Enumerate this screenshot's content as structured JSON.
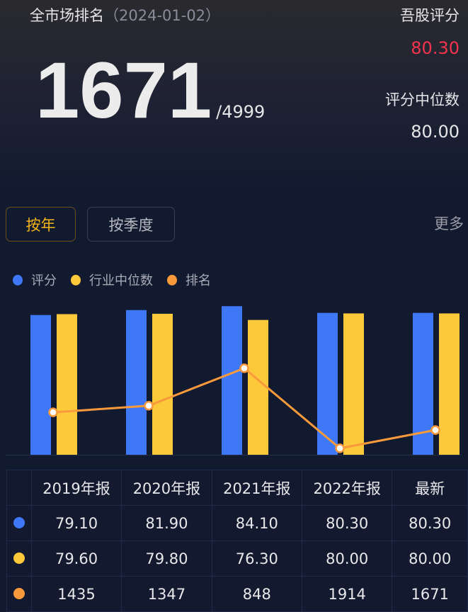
{
  "header": {
    "title": "全市场排名",
    "date": "（2024-01-02）",
    "rank": "1671",
    "total": "/4999",
    "score_label": "吾股评分",
    "score_value": "80.30",
    "median_label": "评分中位数",
    "median_value": "80.00"
  },
  "tabs": [
    {
      "label": "按年",
      "active": true
    },
    {
      "label": "按季度",
      "active": false
    }
  ],
  "more_label": "更多",
  "colors": {
    "score": "#3f78f6",
    "median": "#fcc93a",
    "rank": "#f89a3c",
    "score_value": "#f5334d",
    "active_tab": "#f6b418"
  },
  "chart_data": {
    "type": "bar+line",
    "categories": [
      "2019年报",
      "2020年报",
      "2021年报",
      "2022年报",
      "最新"
    ],
    "series": [
      {
        "name": "评分",
        "type": "bar",
        "color": "#3f78f6",
        "values": [
          79.1,
          81.9,
          84.1,
          80.3,
          80.3
        ]
      },
      {
        "name": "行业中位数",
        "type": "bar",
        "color": "#fcc93a",
        "values": [
          79.6,
          79.8,
          76.3,
          80.0,
          80.0
        ]
      },
      {
        "name": "排名",
        "type": "line",
        "color": "#f89a3c",
        "values": [
          1435,
          1347,
          848,
          1914,
          1671
        ],
        "axis": "reversed"
      }
    ],
    "bar_ylim": [
      0,
      85
    ],
    "rank_ylim": [
      0,
      2000
    ],
    "legend": "top-left",
    "grid": false
  },
  "table": {
    "headers": [
      "2019年报",
      "2020年报",
      "2021年报",
      "2022年报",
      "最新"
    ],
    "rows": [
      {
        "color": "#3f78f6",
        "values": [
          "79.10",
          "81.90",
          "84.10",
          "80.30",
          "80.30"
        ]
      },
      {
        "color": "#fcc93a",
        "values": [
          "79.60",
          "79.80",
          "76.30",
          "80.00",
          "80.00"
        ]
      },
      {
        "color": "#f89a3c",
        "values": [
          "1435",
          "1347",
          "848",
          "1914",
          "1671"
        ]
      }
    ]
  }
}
